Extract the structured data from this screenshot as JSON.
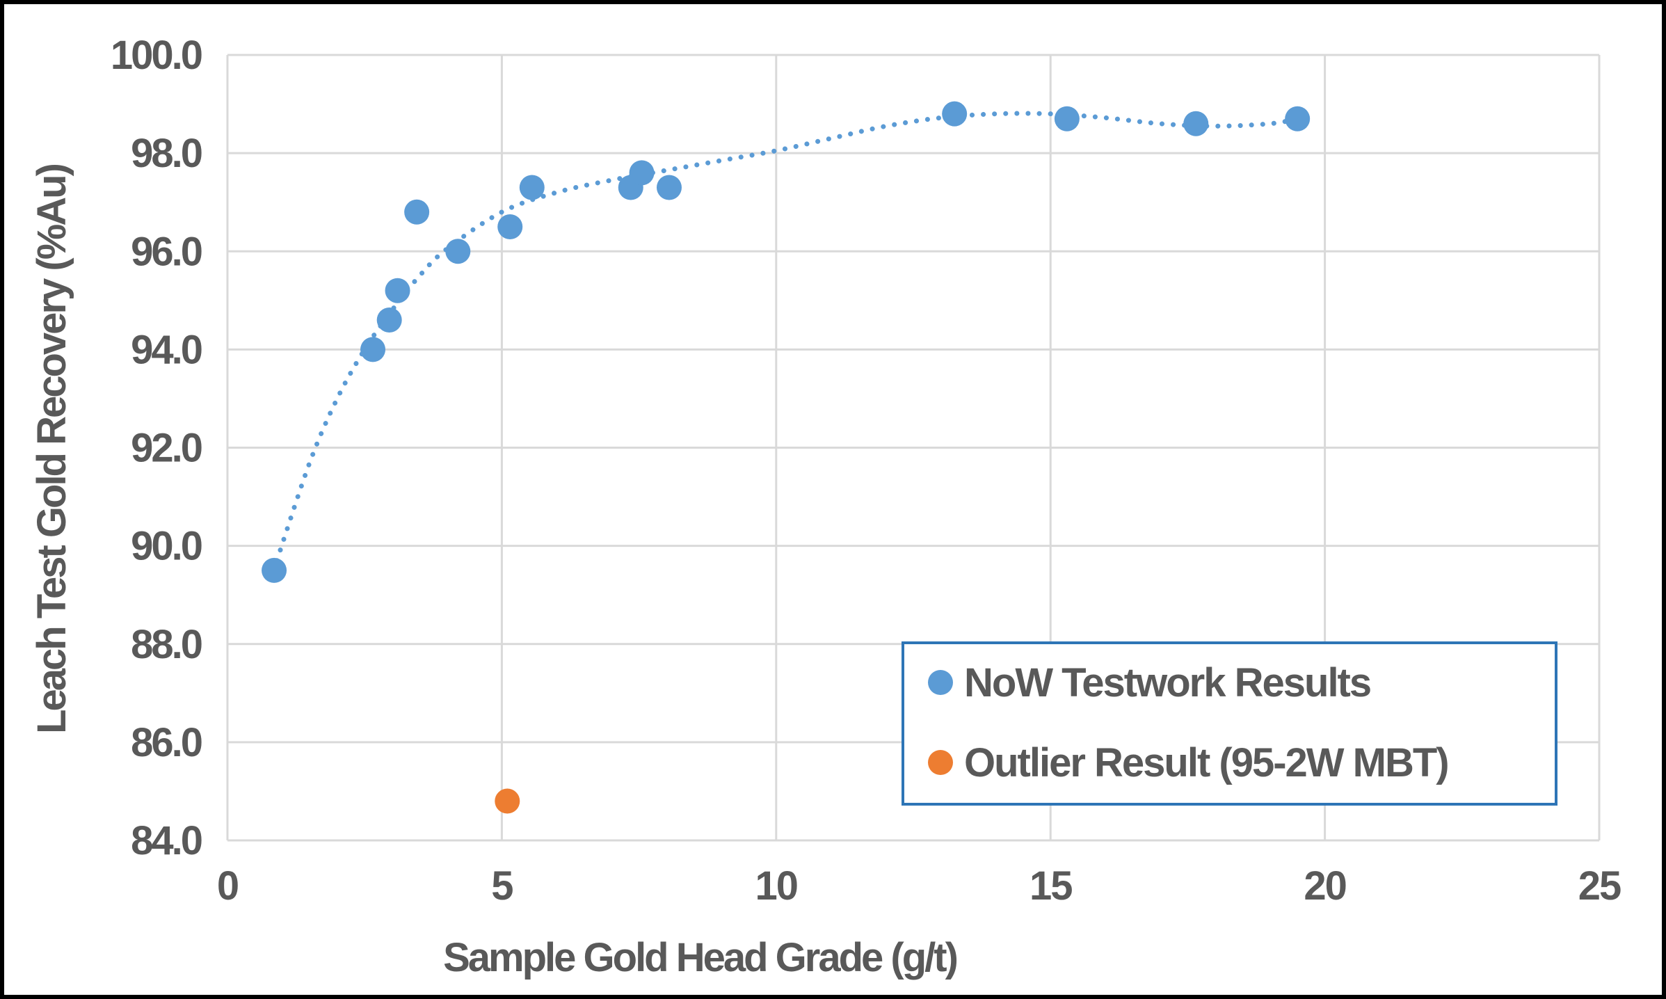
{
  "chart_data": {
    "type": "scatter",
    "title": "",
    "xlabel": "Sample Gold Head Grade (g/t)",
    "ylabel": "Leach Test Gold Recovery (%Au)",
    "xlim": [
      0,
      25
    ],
    "ylim": [
      84,
      100
    ],
    "xticks": [
      0,
      5,
      10,
      15,
      20,
      25
    ],
    "xtick_labels": [
      "0",
      "5",
      "10",
      "15",
      "20",
      "25"
    ],
    "yticks": [
      84,
      86,
      88,
      90,
      92,
      94,
      96,
      98,
      100
    ],
    "ytick_labels": [
      "84.0",
      "86.0",
      "88.0",
      "90.0",
      "92.0",
      "94.0",
      "96.0",
      "98.0",
      "100.0"
    ],
    "grid": true,
    "legend_position": "bottom-right",
    "series": [
      {
        "name": "NoW Testwork Results",
        "color": "#5B9BD5",
        "marker": "circle",
        "x": [
          0.85,
          2.65,
          2.95,
          3.1,
          3.45,
          4.2,
          5.15,
          5.55,
          7.35,
          7.55,
          8.05,
          13.25,
          15.3,
          17.65,
          19.5
        ],
        "y": [
          89.5,
          94.0,
          94.6,
          95.2,
          96.8,
          96.0,
          96.5,
          97.3,
          97.3,
          97.6,
          97.3,
          98.8,
          98.7,
          98.6,
          98.7
        ]
      },
      {
        "name": "Outlier Result (95-2W MBT)",
        "color": "#ED7D31",
        "marker": "circle",
        "x": [
          5.1
        ],
        "y": [
          84.8
        ]
      }
    ],
    "trendline": {
      "series": "NoW Testwork Results",
      "style": "dotted",
      "color": "#5B9BD5",
      "x": [
        0.9,
        1.5,
        2.0,
        2.5,
        3.0,
        3.5,
        4.0,
        5.0,
        6.0,
        7.0,
        8.0,
        9.0,
        10.0,
        11.0,
        12.0,
        13.0,
        14.0,
        15.0,
        16.0,
        17.0,
        18.0,
        19.0,
        19.5
      ],
      "y": [
        89.7,
        91.7,
        93.0,
        94.0,
        94.8,
        95.5,
        96.05,
        96.8,
        97.2,
        97.45,
        97.65,
        97.85,
        98.05,
        98.3,
        98.55,
        98.72,
        98.8,
        98.8,
        98.72,
        98.6,
        98.55,
        98.6,
        98.7
      ]
    }
  }
}
